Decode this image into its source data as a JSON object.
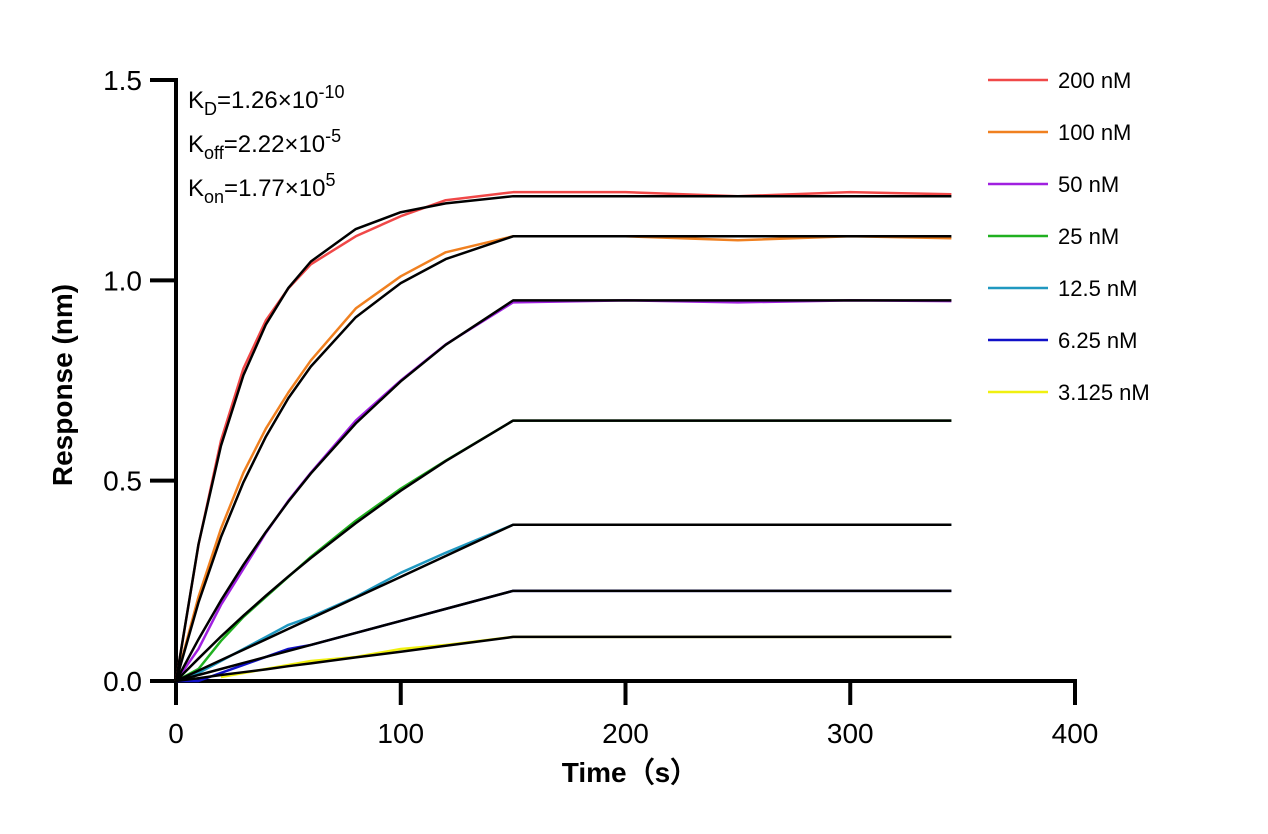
{
  "chart_data": {
    "type": "line",
    "xlabel": "Time（s）",
    "ylabel": "Response (nm)",
    "xlim": [
      0,
      400
    ],
    "ylim": [
      0,
      1.5
    ],
    "xticks": [
      0,
      100,
      200,
      300,
      400
    ],
    "yticks": [
      {
        "value": 0,
        "label": "0.0"
      },
      {
        "value": 0.5,
        "label": "0.5"
      },
      {
        "value": 1,
        "label": "1.0"
      },
      {
        "value": 1.5,
        "label": "1.5"
      }
    ],
    "legend": "right",
    "annotations": [
      {
        "main": "K",
        "sub": "D",
        "text": "=1.26×10",
        "sup": "-10"
      },
      {
        "main": "K",
        "sub": "off",
        "text": "=2.22×10",
        "sup": "-5"
      },
      {
        "main": "K",
        "sub": "on",
        "text": "=1.77×10",
        "sup": "5"
      }
    ],
    "x": [
      0,
      10,
      20,
      30,
      40,
      50,
      60,
      80,
      100,
      120,
      150,
      200,
      250,
      300,
      345
    ],
    "series": [
      {
        "name": "200 nM",
        "color": "#f04848",
        "values": [
          0,
          0.34,
          0.6,
          0.78,
          0.9,
          0.98,
          1.04,
          1.11,
          1.16,
          1.2,
          1.22,
          1.22,
          1.21,
          1.22,
          1.215
        ]
      },
      {
        "name": "100 nM",
        "color": "#f08020",
        "values": [
          0,
          0.21,
          0.38,
          0.52,
          0.63,
          0.72,
          0.8,
          0.93,
          1.01,
          1.07,
          1.11,
          1.11,
          1.1,
          1.11,
          1.105
        ]
      },
      {
        "name": "50 nM",
        "color": "#a020e0",
        "values": [
          0,
          0.08,
          0.19,
          0.28,
          0.37,
          0.45,
          0.52,
          0.65,
          0.75,
          0.84,
          0.945,
          0.95,
          0.945,
          0.95,
          0.948
        ]
      },
      {
        "name": "25 nM",
        "color": "#20b020",
        "values": [
          0,
          0.03,
          0.1,
          0.16,
          0.21,
          0.26,
          0.31,
          0.4,
          0.48,
          0.55,
          0.65,
          0.65,
          0.65,
          0.65,
          0.65
        ]
      },
      {
        "name": "12.5 nM",
        "color": "#2098c0",
        "values": [
          0,
          0.02,
          0.05,
          0.08,
          0.11,
          0.14,
          0.16,
          0.21,
          0.27,
          0.32,
          0.39,
          0.39,
          0.39,
          0.39,
          0.39
        ]
      },
      {
        "name": "6.25 nM",
        "color": "#1010c8",
        "values": [
          0,
          0,
          0.02,
          0.04,
          0.06,
          0.08,
          0.09,
          0.12,
          0.15,
          0.18,
          0.225,
          0.225,
          0.225,
          0.225,
          0.225
        ]
      },
      {
        "name": "3.125 nM",
        "color": "#f0f010",
        "values": [
          null,
          null,
          0.01,
          0.02,
          0.03,
          0.04,
          0.05,
          0.06,
          0.08,
          0.09,
          0.11,
          0.11,
          0.11,
          0.11,
          0.11
        ]
      }
    ],
    "fits": [
      {
        "color": "#000000",
        "values": [
          0,
          0.341,
          0.587,
          0.763,
          0.89,
          0.981,
          1.047,
          1.128,
          1.17,
          1.192,
          1.21,
          1.21,
          1.21,
          1.21,
          1.21
        ]
      },
      {
        "color": "#000000",
        "values": [
          0,
          0.196,
          0.359,
          0.496,
          0.61,
          0.706,
          0.785,
          0.908,
          0.993,
          1.053,
          1.11,
          1.11,
          1.11,
          1.11,
          1.11
        ]
      },
      {
        "color": "#000000",
        "values": [
          0,
          0.104,
          0.201,
          0.29,
          0.372,
          0.448,
          0.518,
          0.643,
          0.748,
          0.839,
          0.95,
          0.95,
          0.95,
          0.95,
          0.95
        ]
      },
      {
        "color": "#000000",
        "values": [
          0,
          0.056,
          0.111,
          0.163,
          0.213,
          0.261,
          0.307,
          0.394,
          0.475,
          0.549,
          0.65,
          0.65,
          0.65,
          0.65,
          0.65
        ]
      },
      {
        "color": "#000000",
        "values": [
          0,
          0.026,
          0.052,
          0.078,
          0.104,
          0.13,
          0.156,
          0.208,
          0.26,
          0.312,
          0.39,
          0.39,
          0.39,
          0.39,
          0.39
        ]
      },
      {
        "color": "#000000",
        "values": [
          0,
          0.015,
          0.03,
          0.045,
          0.06,
          0.075,
          0.09,
          0.12,
          0.15,
          0.18,
          0.225,
          0.225,
          0.225,
          0.225,
          0.225
        ]
      },
      {
        "color": "#000000",
        "values": [
          0,
          0.007,
          0.015,
          0.022,
          0.029,
          0.037,
          0.044,
          0.059,
          0.073,
          0.088,
          0.11,
          0.11,
          0.11,
          0.11,
          0.11
        ]
      }
    ]
  }
}
